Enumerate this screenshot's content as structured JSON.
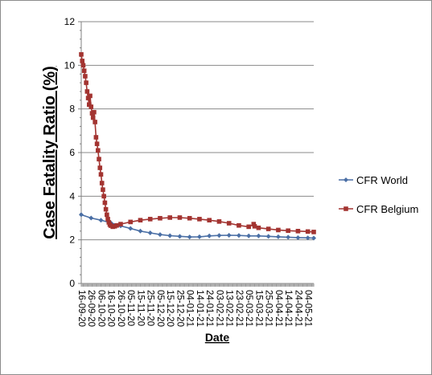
{
  "chart_data": {
    "type": "line",
    "xlabel": "Date",
    "ylabel": "Case Fatality Ratio (%)",
    "ylim": [
      0,
      12
    ],
    "yticks": [
      "0",
      "2",
      "4",
      "6",
      "8",
      "10",
      "12"
    ],
    "grid": "horizontal",
    "legend_position": "right",
    "x_tick_labels": [
      "16-09-20",
      "26-09-20",
      "06-10-20",
      "16-10-20",
      "26-10-20",
      "05-11-20",
      "15-11-20",
      "25-11-20",
      "05-12-20",
      "15-12-20",
      "25-12-20",
      "04-01-21",
      "14-01-21",
      "24-01-21",
      "03-02-21",
      "13-02-21",
      "23-02-21",
      "05-03-21",
      "15-03-21",
      "25-03-21",
      "04-04-21",
      "14-04-21",
      "24-04-21",
      "04-05-21"
    ],
    "x_tick_days": [
      0,
      10,
      20,
      30,
      40,
      50,
      60,
      70,
      80,
      90,
      100,
      110,
      120,
      130,
      140,
      150,
      160,
      170,
      180,
      190,
      200,
      210,
      220,
      230
    ],
    "x_range_days": [
      0,
      236
    ],
    "series": [
      {
        "name": "CFR World",
        "color": "#4a6fa5",
        "marker": "diamond",
        "points": [
          [
            0,
            3.15
          ],
          [
            10,
            3.0
          ],
          [
            20,
            2.9
          ],
          [
            30,
            2.78
          ],
          [
            40,
            2.64
          ],
          [
            50,
            2.52
          ],
          [
            60,
            2.4
          ],
          [
            70,
            2.32
          ],
          [
            80,
            2.24
          ],
          [
            90,
            2.19
          ],
          [
            100,
            2.16
          ],
          [
            110,
            2.13
          ],
          [
            120,
            2.14
          ],
          [
            130,
            2.18
          ],
          [
            140,
            2.2
          ],
          [
            150,
            2.21
          ],
          [
            160,
            2.2
          ],
          [
            170,
            2.18
          ],
          [
            180,
            2.18
          ],
          [
            190,
            2.16
          ],
          [
            200,
            2.14
          ],
          [
            210,
            2.12
          ],
          [
            220,
            2.1
          ],
          [
            230,
            2.09
          ],
          [
            236,
            2.08
          ]
        ]
      },
      {
        "name": "CFR Belgium",
        "color": "#a33431",
        "marker": "square",
        "points": [
          [
            0,
            10.5
          ],
          [
            1,
            10.2
          ],
          [
            2,
            10.0
          ],
          [
            3,
            9.75
          ],
          [
            4,
            9.5
          ],
          [
            5,
            9.2
          ],
          [
            6,
            8.8
          ],
          [
            7,
            8.5
          ],
          [
            8,
            8.2
          ],
          [
            9,
            8.6
          ],
          [
            10,
            8.1
          ],
          [
            11,
            7.8
          ],
          [
            12,
            7.6
          ],
          [
            13,
            7.85
          ],
          [
            14,
            7.4
          ],
          [
            15,
            6.7
          ],
          [
            16,
            6.4
          ],
          [
            17,
            6.1
          ],
          [
            18,
            5.7
          ],
          [
            19,
            5.3
          ],
          [
            20,
            5.0
          ],
          [
            21,
            4.6
          ],
          [
            22,
            4.3
          ],
          [
            23,
            4.0
          ],
          [
            24,
            3.7
          ],
          [
            25,
            3.4
          ],
          [
            26,
            3.15
          ],
          [
            27,
            2.95
          ],
          [
            28,
            2.8
          ],
          [
            29,
            2.7
          ],
          [
            30,
            2.65
          ],
          [
            32,
            2.6
          ],
          [
            34,
            2.62
          ],
          [
            36,
            2.66
          ],
          [
            40,
            2.72
          ],
          [
            50,
            2.82
          ],
          [
            60,
            2.9
          ],
          [
            70,
            2.95
          ],
          [
            80,
            2.99
          ],
          [
            90,
            3.02
          ],
          [
            100,
            3.02
          ],
          [
            110,
            2.99
          ],
          [
            120,
            2.95
          ],
          [
            130,
            2.9
          ],
          [
            140,
            2.84
          ],
          [
            150,
            2.76
          ],
          [
            160,
            2.66
          ],
          [
            170,
            2.6
          ],
          [
            175,
            2.72
          ],
          [
            176,
            2.62
          ],
          [
            180,
            2.55
          ],
          [
            190,
            2.5
          ],
          [
            200,
            2.45
          ],
          [
            210,
            2.42
          ],
          [
            220,
            2.4
          ],
          [
            230,
            2.38
          ],
          [
            236,
            2.36
          ]
        ]
      }
    ]
  }
}
